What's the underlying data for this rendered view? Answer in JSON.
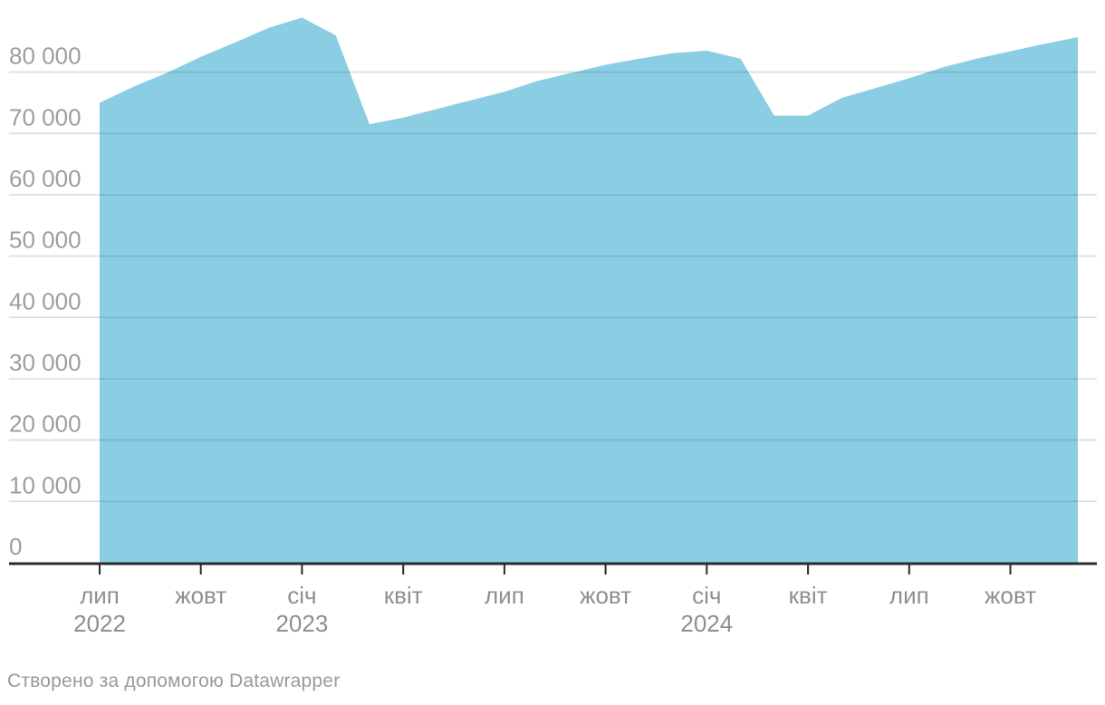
{
  "chart_data": {
    "type": "area",
    "title": "",
    "xlabel": "",
    "ylabel": "",
    "legend": "none",
    "grid": "horizontal",
    "area_color": "#8BCDE3",
    "gridline_color": "#d9d9d9",
    "axis_line_color": "#2b2b2b",
    "y_label_color": "#9e9e9e",
    "x_label_color": "#8f8f8f",
    "ylim": [
      0,
      91800
    ],
    "x": [
      "2022-07",
      "2022-08",
      "2022-09",
      "2022-10",
      "2022-11",
      "2022-12",
      "2023-01",
      "2023-02",
      "2023-03",
      "2023-04",
      "2023-05",
      "2023-06",
      "2023-07",
      "2023-08",
      "2023-09",
      "2023-10",
      "2023-11",
      "2023-12",
      "2024-01",
      "2024-02",
      "2024-03",
      "2024-04",
      "2024-05",
      "2024-06",
      "2024-07",
      "2024-08",
      "2024-09",
      "2024-10",
      "2024-11",
      "2024-12"
    ],
    "values": [
      75000,
      77600,
      79900,
      82500,
      84800,
      87200,
      88900,
      86000,
      71500,
      72600,
      74000,
      75400,
      76800,
      78600,
      79900,
      81200,
      82200,
      83100,
      83500,
      82200,
      72900,
      72900,
      75800,
      77400,
      79000,
      80800,
      82200,
      83400,
      84600,
      85700
    ],
    "y_ticks": [
      {
        "value": 0,
        "label": "0"
      },
      {
        "value": 10000,
        "label": "10 000"
      },
      {
        "value": 20000,
        "label": "20 000"
      },
      {
        "value": 30000,
        "label": "30 000"
      },
      {
        "value": 40000,
        "label": "40 000"
      },
      {
        "value": 50000,
        "label": "50 000"
      },
      {
        "value": 60000,
        "label": "60 000"
      },
      {
        "value": 70000,
        "label": "70 000"
      },
      {
        "value": 80000,
        "label": "80 000"
      }
    ],
    "x_ticks": [
      {
        "month_index": 0,
        "label": "лип",
        "year": "2022"
      },
      {
        "month_index": 3,
        "label": "жовт",
        "year": ""
      },
      {
        "month_index": 6,
        "label": "січ",
        "year": "2023"
      },
      {
        "month_index": 9,
        "label": "квіт",
        "year": ""
      },
      {
        "month_index": 12,
        "label": "лип",
        "year": ""
      },
      {
        "month_index": 15,
        "label": "жовт",
        "year": ""
      },
      {
        "month_index": 18,
        "label": "січ",
        "year": "2024"
      },
      {
        "month_index": 21,
        "label": "квіт",
        "year": ""
      },
      {
        "month_index": 24,
        "label": "лип",
        "year": ""
      },
      {
        "month_index": 27,
        "label": "жовт",
        "year": ""
      }
    ]
  },
  "footer": {
    "credit": "Створено за допомогою Datawrapper"
  }
}
